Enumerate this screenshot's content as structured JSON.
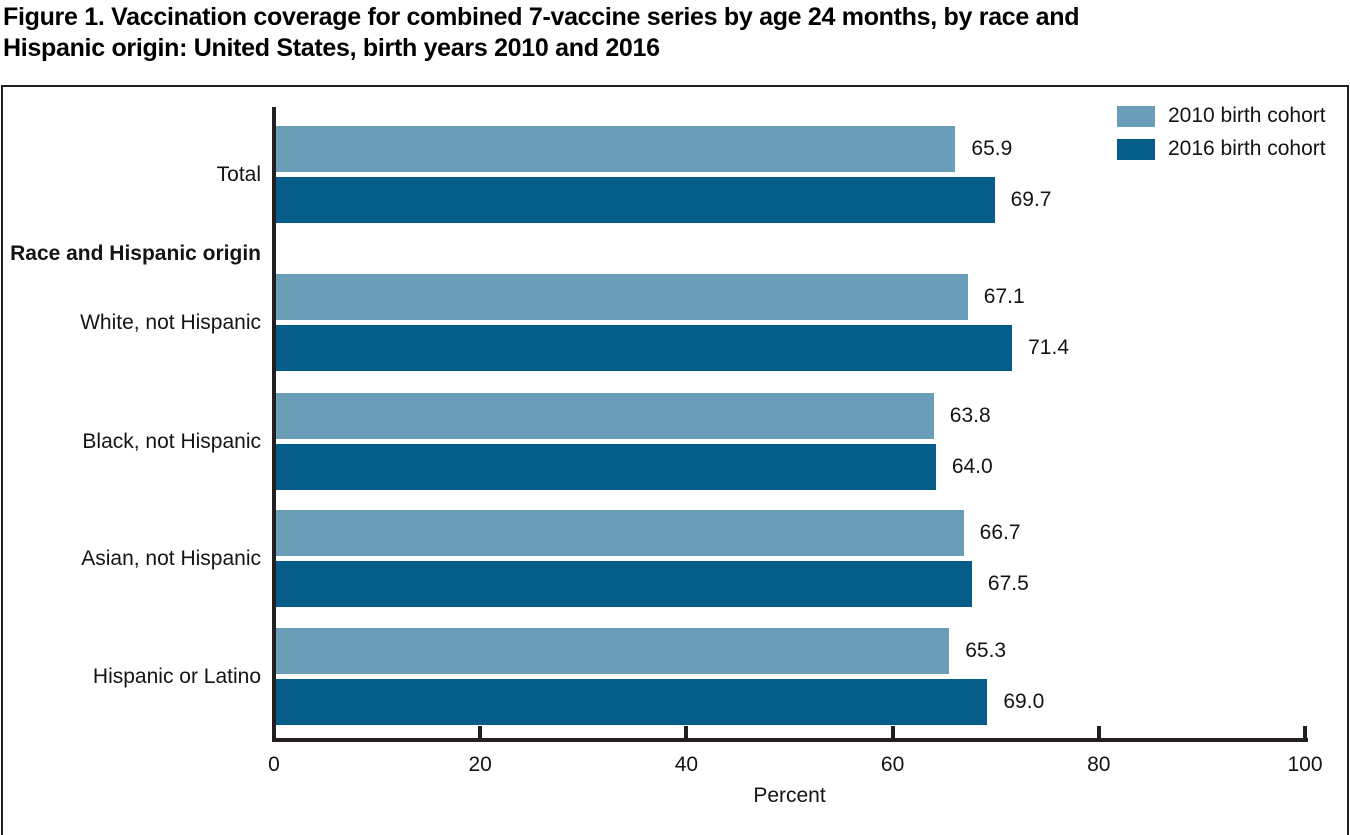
{
  "figure": {
    "title_line1": "Figure 1. Vaccination coverage for combined 7-vaccine series by age 24 months, by race and",
    "title_line2": "Hispanic origin: United States, birth years 2010 and 2016"
  },
  "chart_data": {
    "type": "bar",
    "orientation": "horizontal",
    "title": "Figure 1. Vaccination coverage for combined 7-vaccine series by age 24 months, by race and Hispanic origin: United States, birth years 2010 and 2016",
    "section_label": "Race and Hispanic origin",
    "categories": [
      "Total",
      "White, not Hispanic",
      "Black, not Hispanic",
      "Asian, not Hispanic",
      "Hispanic or Latino"
    ],
    "series": [
      {
        "name": "2010 birth cohort",
        "color": "#6a9db8",
        "values": [
          65.9,
          67.1,
          63.8,
          66.7,
          65.3
        ]
      },
      {
        "name": "2016 birth cohort",
        "color": "#075d8a",
        "values": [
          69.7,
          71.4,
          64.0,
          67.5,
          69.0
        ]
      }
    ],
    "value_labels_decimals": 1,
    "xlabel": "Percent",
    "xlim": [
      0,
      100
    ],
    "xticks": [
      0,
      20,
      40,
      60,
      80,
      100
    ],
    "grid": false,
    "legend_position": "top-right",
    "axis_color": "#231f20"
  }
}
